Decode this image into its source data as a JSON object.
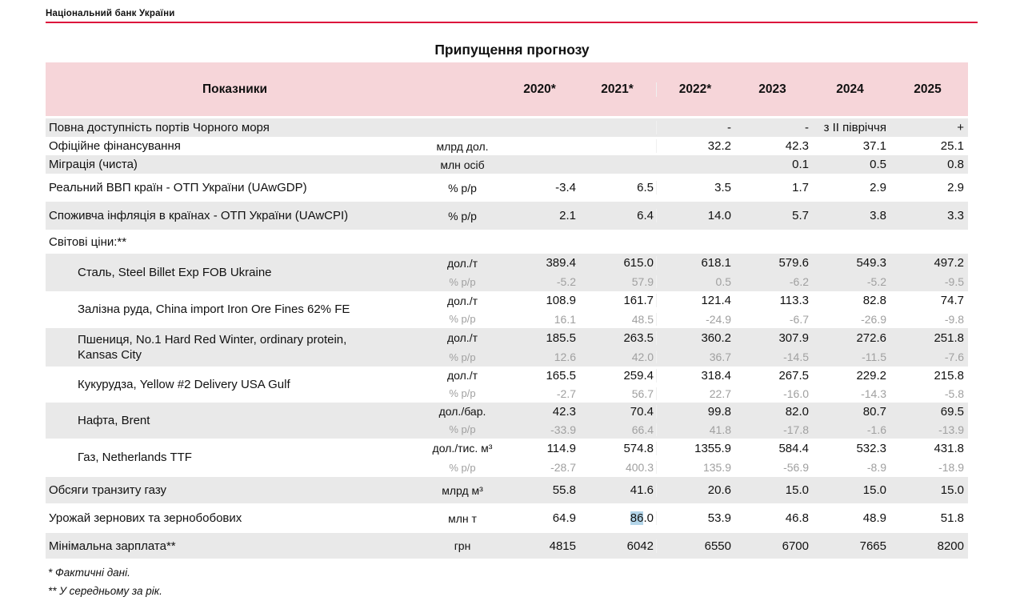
{
  "header": {
    "brand": "Національний банк України"
  },
  "title": "Припущення прогнозу",
  "colors": {
    "accent_red": "#dc143c",
    "header_pink": "#f6d5d9",
    "row_stripe": "#e9e9e9",
    "muted_text": "#a0a0a0",
    "highlight_blue": "#b3d5e9"
  },
  "table": {
    "header": {
      "label": "Показники",
      "years": [
        "2020*",
        "2021*",
        "2022*",
        "2023",
        "2024",
        "2025"
      ]
    },
    "rows": [
      {
        "label": "Повна доступність портів Чорного моря",
        "unit": "",
        "values": [
          "",
          "",
          "-",
          "-",
          "з ІІ півріччя",
          "+"
        ],
        "shaded": true
      },
      {
        "label": "Офіційне фінансування",
        "unit": "млрд дол.",
        "values": [
          "",
          "",
          "32.2",
          "42.3",
          "37.1",
          "25.1"
        ],
        "shaded": false
      },
      {
        "label": "Міграція (чиста)",
        "unit": "млн осіб",
        "values": [
          "",
          "",
          "",
          "0.1",
          "0.5",
          "0.8"
        ],
        "shaded": true
      },
      {
        "label": "Реальний ВВП країн - ОТП України (UAwGDP)",
        "unit": "% р/р",
        "values": [
          "-3.4",
          "6.5",
          "3.5",
          "1.7",
          "2.9",
          "2.9"
        ],
        "shaded": false
      },
      {
        "label": "Споживча інфляція в країнах - ОТП України (UAwCPI)",
        "unit": "% р/р",
        "values": [
          "2.1",
          "6.4",
          "14.0",
          "5.7",
          "3.8",
          "3.3"
        ],
        "shaded": true
      },
      {
        "label": "Світові ціни:**",
        "unit": "",
        "values": [
          "",
          "",
          "",
          "",
          "",
          ""
        ],
        "shaded": false
      },
      {
        "label": "Сталь, Steel Billet Exp FOB Ukraine",
        "indent": true,
        "unit": "дол./т",
        "unit2": "% р/р",
        "values": [
          "389.4",
          "615.0",
          "618.1",
          "579.6",
          "549.3",
          "497.2"
        ],
        "values2": [
          "-5.2",
          "57.9",
          "0.5",
          "-6.2",
          "-5.2",
          "-9.5"
        ],
        "shaded": true
      },
      {
        "label": "Залізна руда, China import Iron Ore Fines 62% FE",
        "indent": true,
        "unit": "дол./т",
        "unit2": "% р/р",
        "values": [
          "108.9",
          "161.7",
          "121.4",
          "113.3",
          "82.8",
          "74.7"
        ],
        "values2": [
          "16.1",
          "48.5",
          "-24.9",
          "-6.7",
          "-26.9",
          "-9.8"
        ],
        "shaded": false
      },
      {
        "label": "Пшениця, No.1 Hard Red Winter, ordinary protein,",
        "label2": "Kansas City",
        "indent": true,
        "unit": "дол./т",
        "unit2": "% р/р",
        "values": [
          "185.5",
          "263.5",
          "360.2",
          "307.9",
          "272.6",
          "251.8"
        ],
        "values2": [
          "12.6",
          "42.0",
          "36.7",
          "-14.5",
          "-11.5",
          "-7.6"
        ],
        "shaded": true
      },
      {
        "label": "Кукурудза, Yellow #2 Delivery USA Gulf",
        "indent": true,
        "unit": "дол./т",
        "unit2": "% р/р",
        "values": [
          "165.5",
          "259.4",
          "318.4",
          "267.5",
          "229.2",
          "215.8"
        ],
        "values2": [
          "-2.7",
          "56.7",
          "22.7",
          "-16.0",
          "-14.3",
          "-5.8"
        ],
        "shaded": false
      },
      {
        "label": "Нафта, Brent",
        "indent": true,
        "unit": "дол./бар.",
        "unit2": "% р/р",
        "values": [
          "42.3",
          "70.4",
          "99.8",
          "82.0",
          "80.7",
          "69.5"
        ],
        "values2": [
          "-33.9",
          "66.4",
          "41.8",
          "-17.8",
          "-1.6",
          "-13.9"
        ],
        "shaded": true
      },
      {
        "label": "Газ, Netherlands TTF",
        "indent": true,
        "unit": "дол./тис. м³",
        "unit2": "% р/р",
        "values": [
          "114.9",
          "574.8",
          "1355.9",
          "584.4",
          "532.3",
          "431.8"
        ],
        "values2": [
          "-28.7",
          "400.3",
          "135.9",
          "-56.9",
          "-8.9",
          "-18.9"
        ],
        "shaded": false
      },
      {
        "label": "Обсяги транзиту газу",
        "unit": "млрд м³",
        "values": [
          "55.8",
          "41.6",
          "20.6",
          "15.0",
          "15.0",
          "15.0"
        ],
        "shaded": true
      },
      {
        "label": "Урожай зернових та зернобобових",
        "unit": "млн т",
        "values": [
          "64.9",
          "86.0",
          "53.9",
          "46.8",
          "48.9",
          "51.8"
        ],
        "highlight": {
          "col": 1,
          "text": "86",
          "rest": ".0"
        },
        "shaded": false
      },
      {
        "label": "Мінімальна зарплата**",
        "unit": "грн",
        "values": [
          "4815",
          "6042",
          "6550",
          "6700",
          "7665",
          "8200"
        ],
        "shaded": true
      }
    ]
  },
  "footnotes": [
    "* Фактичні дані.",
    "** У середньому за рік."
  ]
}
